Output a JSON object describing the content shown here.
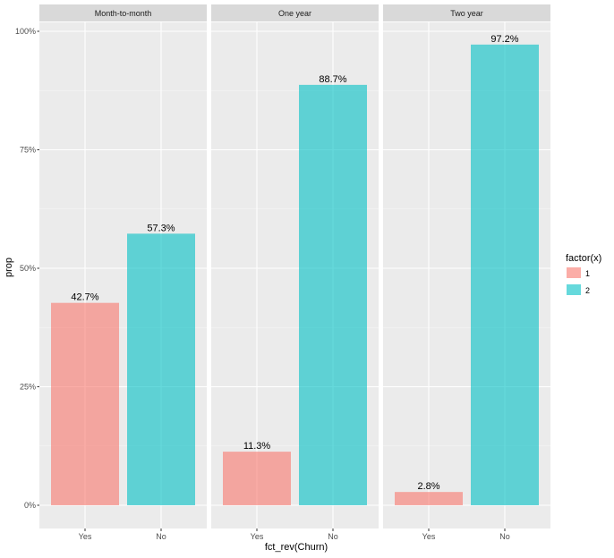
{
  "chart_data": {
    "type": "bar",
    "facet_by": "Contract",
    "panels": [
      {
        "label": "Month-to-month",
        "categories": [
          "Yes",
          "No"
        ],
        "values": [
          0.427,
          0.573
        ],
        "labels": [
          "42.7%",
          "57.3%"
        ],
        "fill_groups": [
          "1",
          "2"
        ]
      },
      {
        "label": "One year",
        "categories": [
          "Yes",
          "No"
        ],
        "values": [
          0.113,
          0.887
        ],
        "labels": [
          "11.3%",
          "88.7%"
        ],
        "fill_groups": [
          "1",
          "2"
        ]
      },
      {
        "label": "Two year",
        "categories": [
          "Yes",
          "No"
        ],
        "values": [
          0.028,
          0.972
        ],
        "labels": [
          "2.8%",
          "97.2%"
        ],
        "fill_groups": [
          "1",
          "2"
        ]
      }
    ],
    "xlabel": "fct_rev(Churn)",
    "ylabel": "prop",
    "ylim": [
      0,
      1
    ],
    "yticks": [
      0,
      0.25,
      0.5,
      0.75,
      1.0
    ],
    "ytick_labels": [
      "0%",
      "25%",
      "50%",
      "75%",
      "100%"
    ],
    "grid": true,
    "legend": {
      "title": "factor(x)",
      "placement": "right",
      "entries": [
        {
          "label": "1",
          "color": "#f8766d"
        },
        {
          "label": "2",
          "color": "#00bfc4"
        }
      ]
    },
    "colors": {
      "1": "#f8766d",
      "2": "#00bfc4"
    },
    "bar_opacity": 0.6,
    "panel_background": "#ebebeb",
    "strip_background": "#d9d9d9"
  }
}
